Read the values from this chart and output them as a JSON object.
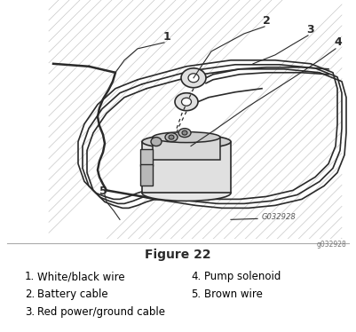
{
  "title": "Figure 22",
  "figure_id": "G032928",
  "figure_id2": "g032928",
  "bg_color": "#ffffff",
  "line_color": "#2a2a2a",
  "gray_fill": "#d8d8d8",
  "light_gray": "#ebebeb",
  "legend_items_left": [
    {
      "num": "1.",
      "text": "White/black wire"
    },
    {
      "num": "2.",
      "text": "Battery cable"
    },
    {
      "num": "3.",
      "text": "Red power/ground cable"
    }
  ],
  "legend_items_right": [
    {
      "num": "4.",
      "text": "Pump solenoid"
    },
    {
      "num": "5.",
      "text": "Brown wire"
    }
  ]
}
